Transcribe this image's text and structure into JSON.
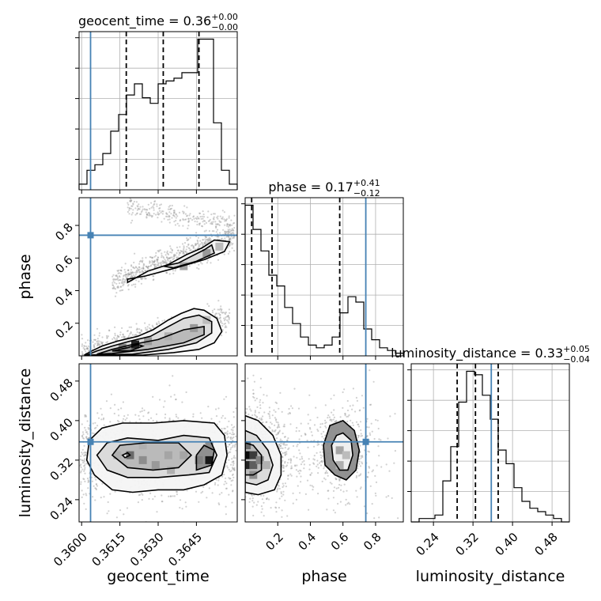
{
  "chart_data": {
    "type": "corner",
    "truth_color": "#4682b4",
    "parameters": [
      {
        "name": "geocent_time",
        "title": {
          "main": "geocent_time = 0.36",
          "sup": "+0.00",
          "sub": "−0.00"
        },
        "truth": 0.36035,
        "quantiles": [
          0.36175,
          0.3632,
          0.3646
        ],
        "range": [
          0.3599,
          0.3661
        ],
        "tick_values": [
          0.36,
          0.3615,
          0.363,
          0.3645
        ],
        "tick_labels": [
          "0.3600",
          "0.3615",
          "0.3630",
          "0.3645"
        ],
        "hist_counts": [
          2,
          7,
          9,
          13,
          21,
          27,
          34,
          38,
          33,
          31,
          38,
          39,
          40,
          42,
          42,
          54,
          54,
          24,
          7,
          2
        ],
        "axis_label": "geocent_time"
      },
      {
        "name": "phase",
        "title": {
          "main": "phase = 0.17",
          "sup": "+0.41",
          "sub": "−0.12"
        },
        "truth": 0.74,
        "quantiles": [
          0.04,
          0.165,
          0.58
        ],
        "range": [
          0.0,
          0.97
        ],
        "tick_values": [
          0.2,
          0.4,
          0.6,
          0.8
        ],
        "tick_labels": [
          "0.2",
          "0.4",
          "0.6",
          "0.8"
        ],
        "hist_counts": [
          56,
          47,
          39,
          30,
          26,
          18,
          12,
          7,
          4,
          3,
          4,
          7,
          16,
          22,
          20,
          10,
          6,
          3,
          2,
          1
        ],
        "axis_label": "phase"
      },
      {
        "name": "luminosity_distance",
        "title": {
          "main": "luminosity_distance = 0.33",
          "sup": "+0.05",
          "sub": "−0.04"
        },
        "truth": 0.357,
        "quantiles": [
          0.288,
          0.325,
          0.371
        ],
        "range": [
          0.195,
          0.515
        ],
        "tick_values": [
          0.24,
          0.32,
          0.4,
          0.48
        ],
        "tick_labels": [
          "0.24",
          "0.32",
          "0.40",
          "0.48"
        ],
        "hist_counts": [
          0,
          1,
          1,
          2,
          12,
          22,
          35,
          44,
          43,
          37,
          30,
          21,
          17,
          10,
          6,
          4,
          3,
          2,
          1,
          0
        ],
        "axis_label": "luminosity_distance"
      }
    ],
    "panels_2d": [
      {
        "x": "geocent_time",
        "y": "phase",
        "contours": [
          [
            [
              0.3601,
              0.005
            ],
            [
              0.3604,
              0.03
            ],
            [
              0.3608,
              0.06
            ],
            [
              0.3614,
              0.09
            ],
            [
              0.3622,
              0.12
            ],
            [
              0.3628,
              0.16
            ],
            [
              0.3634,
              0.22
            ],
            [
              0.3639,
              0.26
            ],
            [
              0.3644,
              0.29
            ],
            [
              0.3648,
              0.28
            ],
            [
              0.3653,
              0.23
            ],
            [
              0.3655,
              0.15
            ],
            [
              0.3652,
              0.08
            ],
            [
              0.3646,
              0.04
            ],
            [
              0.3636,
              0.02
            ],
            [
              0.3624,
              0.005
            ]
          ],
          [
            [
              0.3602,
              0.005
            ],
            [
              0.3606,
              0.03
            ],
            [
              0.3612,
              0.06
            ],
            [
              0.3619,
              0.09
            ],
            [
              0.3627,
              0.12
            ],
            [
              0.3634,
              0.18
            ],
            [
              0.364,
              0.23
            ],
            [
              0.3646,
              0.25
            ],
            [
              0.3651,
              0.21
            ],
            [
              0.3651,
              0.14
            ],
            [
              0.3645,
              0.08
            ],
            [
              0.3634,
              0.04
            ],
            [
              0.362,
              0.01
            ]
          ],
          [
            [
              0.3606,
              0.01
            ],
            [
              0.3612,
              0.04
            ],
            [
              0.362,
              0.07
            ],
            [
              0.363,
              0.1
            ],
            [
              0.364,
              0.16
            ],
            [
              0.3648,
              0.18
            ],
            [
              0.3648,
              0.13
            ],
            [
              0.364,
              0.08
            ],
            [
              0.3626,
              0.04
            ],
            [
              0.3612,
              0.015
            ]
          ],
          [
            [
              0.3612,
              0.03
            ],
            [
              0.3618,
              0.05
            ],
            [
              0.3622,
              0.07
            ],
            [
              0.3624,
              0.06
            ],
            [
              0.3619,
              0.03
            ]
          ],
          [
            [
              0.3618,
              0.45
            ],
            [
              0.3626,
              0.52
            ],
            [
              0.3634,
              0.56
            ],
            [
              0.3641,
              0.62
            ],
            [
              0.3647,
              0.66
            ],
            [
              0.3652,
              0.71
            ],
            [
              0.3658,
              0.7
            ],
            [
              0.3656,
              0.64
            ],
            [
              0.3648,
              0.59
            ],
            [
              0.3637,
              0.54
            ],
            [
              0.3625,
              0.49
            ],
            [
              0.3618,
              0.47
            ]
          ],
          [
            [
              0.3632,
              0.55
            ],
            [
              0.3638,
              0.57
            ],
            [
              0.3643,
              0.61
            ],
            [
              0.3648,
              0.65
            ],
            [
              0.3651,
              0.68
            ],
            [
              0.3652,
              0.63
            ],
            [
              0.3645,
              0.58
            ],
            [
              0.3636,
              0.54
            ]
          ]
        ]
      },
      {
        "x": "geocent_time",
        "y": "luminosity_distance",
        "contours": [
          [
            [
              0.3602,
              0.32
            ],
            [
              0.3605,
              0.29
            ],
            [
              0.3612,
              0.26
            ],
            [
              0.362,
              0.255
            ],
            [
              0.363,
              0.26
            ],
            [
              0.364,
              0.26
            ],
            [
              0.3648,
              0.27
            ],
            [
              0.3655,
              0.29
            ],
            [
              0.3657,
              0.33
            ],
            [
              0.3656,
              0.37
            ],
            [
              0.3652,
              0.395
            ],
            [
              0.364,
              0.4
            ],
            [
              0.3628,
              0.395
            ],
            [
              0.3616,
              0.395
            ],
            [
              0.3608,
              0.385
            ],
            [
              0.3603,
              0.36
            ]
          ],
          [
            [
              0.3606,
              0.33
            ],
            [
              0.361,
              0.3
            ],
            [
              0.3618,
              0.285
            ],
            [
              0.363,
              0.285
            ],
            [
              0.3642,
              0.29
            ],
            [
              0.365,
              0.295
            ],
            [
              0.3653,
              0.33
            ],
            [
              0.365,
              0.365
            ],
            [
              0.364,
              0.37
            ],
            [
              0.363,
              0.36
            ],
            [
              0.3618,
              0.365
            ],
            [
              0.361,
              0.355
            ]
          ],
          [
            [
              0.3612,
              0.33
            ],
            [
              0.3618,
              0.305
            ],
            [
              0.3628,
              0.3
            ],
            [
              0.3638,
              0.305
            ],
            [
              0.3643,
              0.33
            ],
            [
              0.3638,
              0.355
            ],
            [
              0.3625,
              0.355
            ],
            [
              0.3615,
              0.35
            ]
          ],
          [
            [
              0.3645,
              0.3
            ],
            [
              0.3651,
              0.31
            ],
            [
              0.3652,
              0.34
            ],
            [
              0.3648,
              0.35
            ],
            [
              0.3645,
              0.33
            ]
          ],
          [
            [
              0.3617,
              0.325
            ],
            [
              0.3619,
              0.33
            ],
            [
              0.3618,
              0.335
            ],
            [
              0.3616,
              0.33
            ]
          ]
        ]
      },
      {
        "x": "phase",
        "y": "luminosity_distance",
        "contours": [
          [
            [
              0.0,
              0.41
            ],
            [
              0.08,
              0.4
            ],
            [
              0.17,
              0.37
            ],
            [
              0.22,
              0.33
            ],
            [
              0.22,
              0.29
            ],
            [
              0.18,
              0.26
            ],
            [
              0.08,
              0.25
            ],
            [
              0.0,
              0.255
            ]
          ],
          [
            [
              0.0,
              0.38
            ],
            [
              0.07,
              0.37
            ],
            [
              0.14,
              0.34
            ],
            [
              0.17,
              0.31
            ],
            [
              0.14,
              0.28
            ],
            [
              0.07,
              0.27
            ],
            [
              0.0,
              0.275
            ]
          ],
          [
            [
              0.0,
              0.355
            ],
            [
              0.05,
              0.35
            ],
            [
              0.1,
              0.33
            ],
            [
              0.1,
              0.3
            ],
            [
              0.05,
              0.29
            ],
            [
              0.0,
              0.29
            ]
          ],
          [
            [
              0.6,
              0.4
            ],
            [
              0.67,
              0.38
            ],
            [
              0.7,
              0.34
            ],
            [
              0.68,
              0.3
            ],
            [
              0.62,
              0.28
            ],
            [
              0.55,
              0.29
            ],
            [
              0.49,
              0.31
            ],
            [
              0.48,
              0.35
            ],
            [
              0.52,
              0.39
            ]
          ],
          [
            [
              0.6,
              0.375
            ],
            [
              0.65,
              0.36
            ],
            [
              0.66,
              0.33
            ],
            [
              0.63,
              0.3
            ],
            [
              0.58,
              0.3
            ],
            [
              0.54,
              0.32
            ],
            [
              0.53,
              0.35
            ],
            [
              0.56,
              0.37
            ]
          ]
        ]
      }
    ],
    "grid": true
  }
}
